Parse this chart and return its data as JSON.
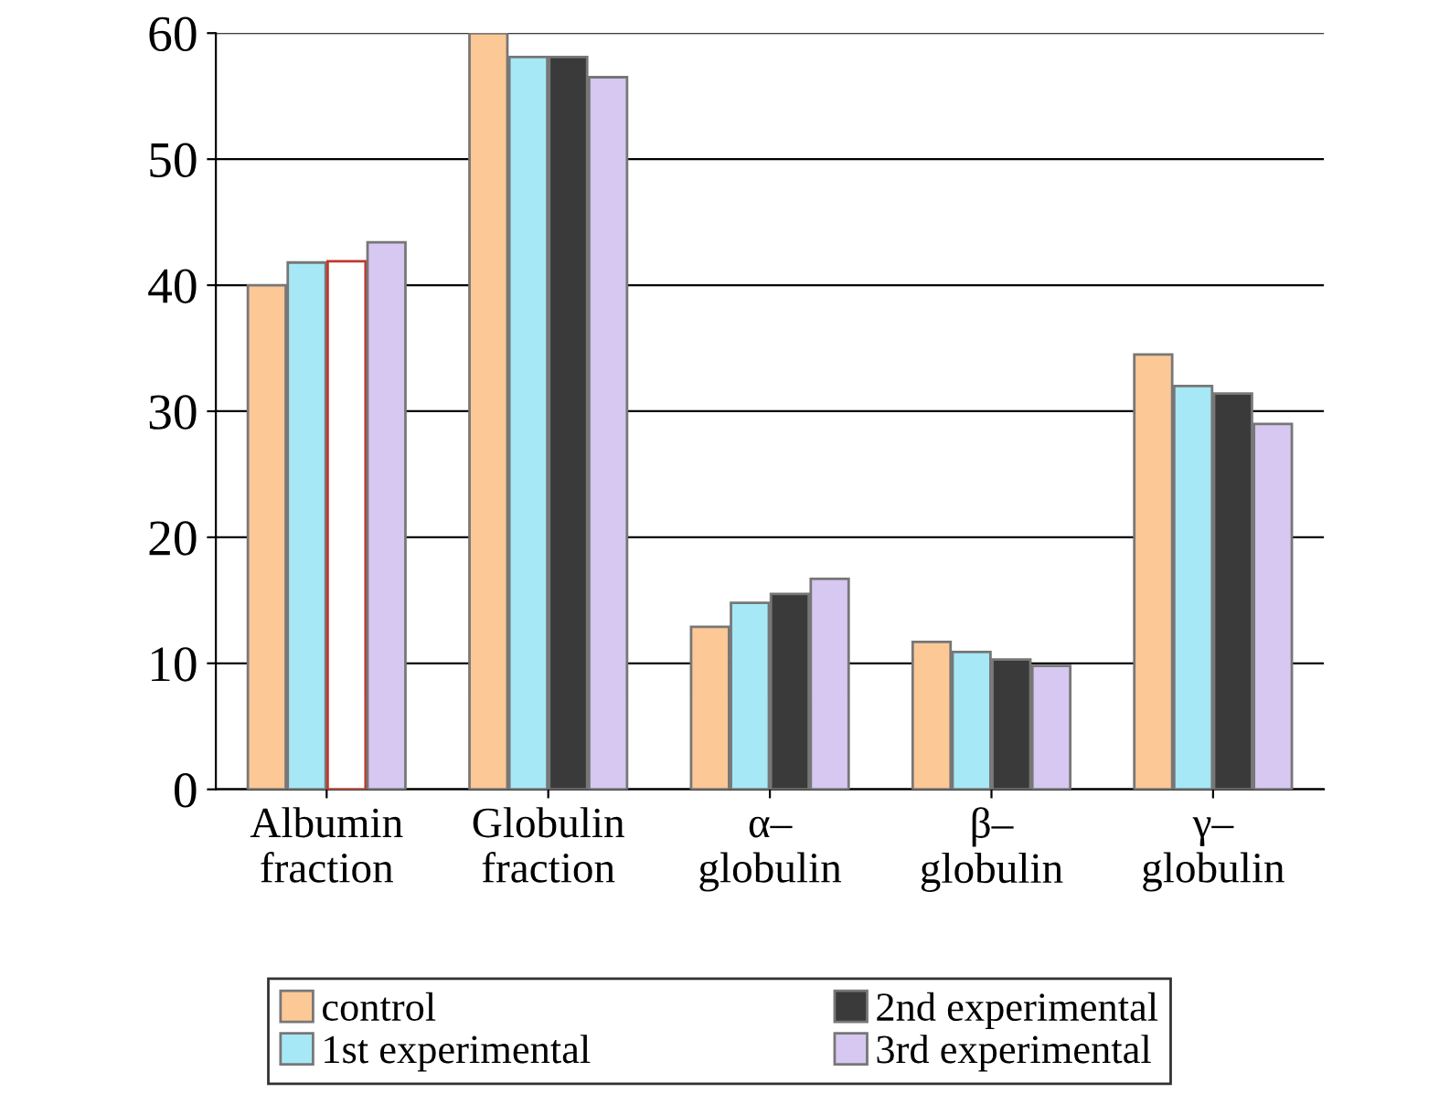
{
  "chart_data": {
    "type": "bar",
    "categories": [
      "Albumin\nfraction",
      "Globulin\nfraction",
      "α–\nglobulin",
      "β–\nglobulin",
      "γ–\nglobulin"
    ],
    "series": [
      {
        "name": "control",
        "color": "#fcc896",
        "values": [
          40.0,
          60.0,
          12.9,
          11.7,
          34.5
        ]
      },
      {
        "name": "1st experimental",
        "color": "#a6e8f6",
        "values": [
          41.8,
          58.1,
          14.8,
          10.9,
          32.0
        ]
      },
      {
        "name": "2nd experimental",
        "color": "#3a3a3a",
        "colors": [
          "#ffffff",
          "#3a3a3a",
          "#3a3a3a",
          "#3a3a3a",
          "#3a3a3a"
        ],
        "values": [
          41.9,
          58.1,
          15.5,
          10.3,
          31.4
        ]
      },
      {
        "name": "3rd experimental",
        "color": "#d6c8f0",
        "values": [
          43.4,
          56.5,
          16.7,
          9.8,
          29.0
        ]
      }
    ],
    "ylim": [
      0,
      60
    ],
    "yticks": [
      0,
      10,
      20,
      30,
      40,
      50,
      60
    ],
    "grid": "y",
    "legend": "bottom"
  }
}
